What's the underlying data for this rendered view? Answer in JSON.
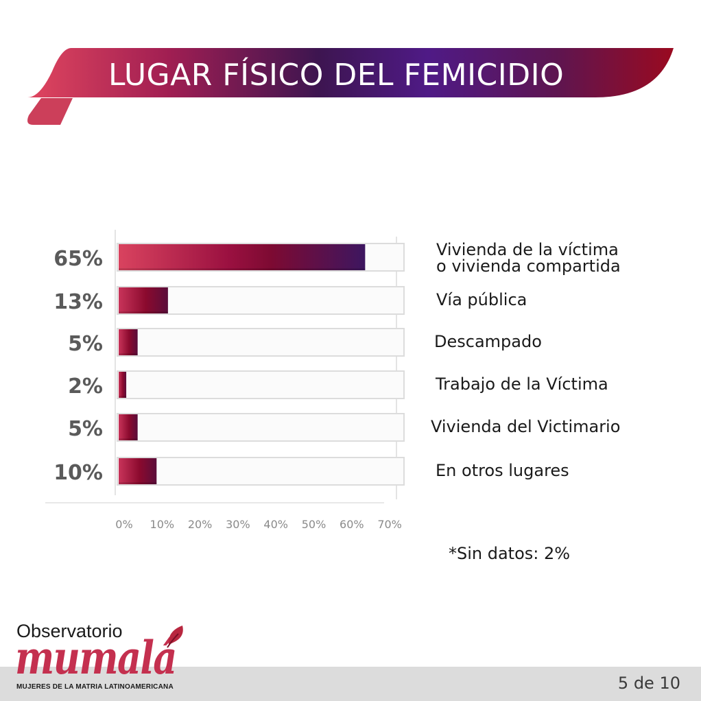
{
  "header": {
    "title": "LUGAR FÍSICO DEL FEMICIDIO"
  },
  "colors": {
    "accent_pink": "#d9435f",
    "accent_wine": "#8b0a2e",
    "accent_purple": "#46166b",
    "footer_band": "#dcdcdc"
  },
  "chart_data": {
    "type": "bar",
    "orientation": "horizontal",
    "categories": [
      [
        "Vivienda de la víctima",
        "o vivienda compartida"
      ],
      [
        "Vía pública"
      ],
      [
        "Descampado"
      ],
      [
        "Trabajo de la Víctima"
      ],
      [
        "Vivienda del Victimario"
      ],
      [
        "En otros lugares"
      ]
    ],
    "values": [
      65,
      13,
      5,
      2,
      5,
      10
    ],
    "value_labels": [
      "65%",
      "13%",
      "5%",
      "2%",
      "5%",
      "10%"
    ],
    "xticks": [
      "0%",
      "10%",
      "20%",
      "30%",
      "40%",
      "50%",
      "60%",
      "70%"
    ],
    "xlim": [
      0,
      70
    ],
    "legend": "none"
  },
  "note": "*Sin datos: 2%",
  "footer": {
    "logo_top": "Observatorio",
    "logo_word": "mumalá",
    "logo_sub": "MUJERES DE LA MATRIA LATINOAMERICANA",
    "page_counter": "5 de 10"
  }
}
